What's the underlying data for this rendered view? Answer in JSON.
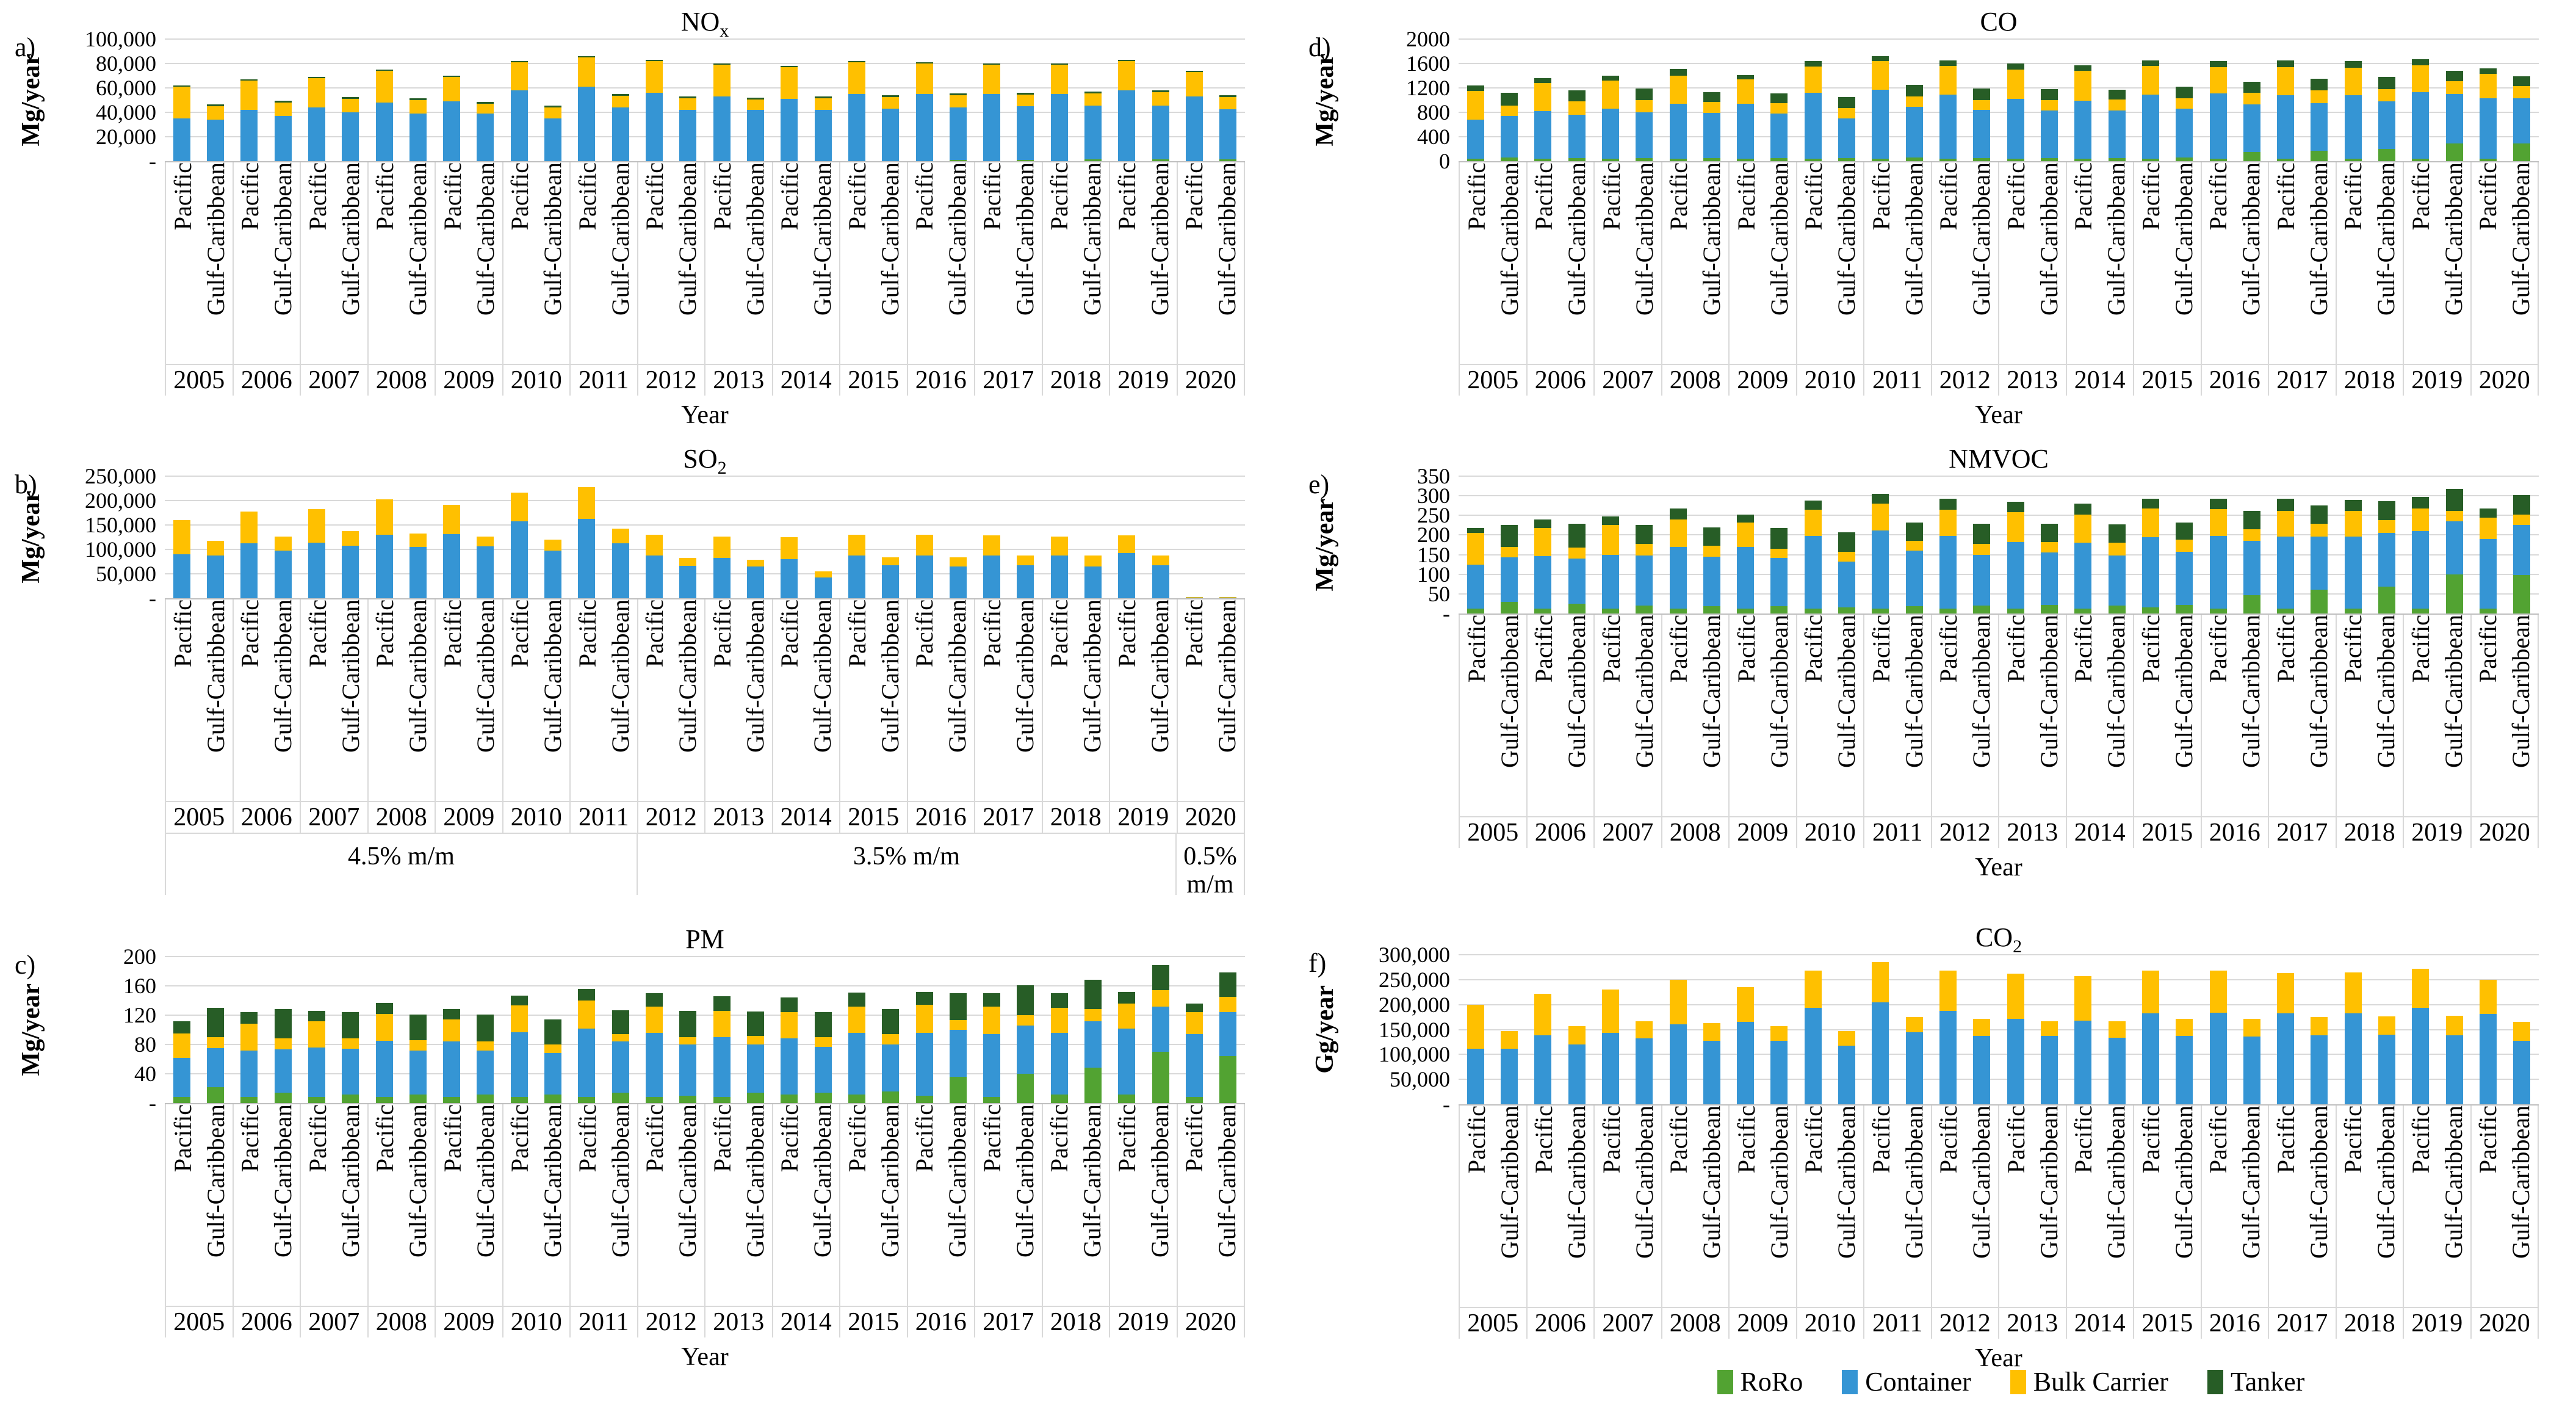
{
  "colors": {
    "RoRo": "#52A332",
    "Container": "#3595D4",
    "Bulk Carrier": "#FFC000",
    "Tanker": "#275D26",
    "gridline": "#D9D9D9",
    "axis_line": "#BFBFBF"
  },
  "regions": [
    "Pacific",
    "Gulf-Caribbean"
  ],
  "years": [
    "2005",
    "2006",
    "2007",
    "2008",
    "2009",
    "2010",
    "2011",
    "2012",
    "2013",
    "2014",
    "2015",
    "2016",
    "2017",
    "2018",
    "2019",
    "2020"
  ],
  "legend": {
    "items": [
      {
        "label": "RoRo",
        "color_key": "RoRo"
      },
      {
        "label": "Container",
        "color_key": "Container"
      },
      {
        "label": "Bulk Carrier",
        "color_key": "Bulk Carrier"
      },
      {
        "label": "Tanker",
        "color_key": "Tanker"
      }
    ]
  },
  "chart_data": [
    {
      "id": "a",
      "type": "bar",
      "stacked": true,
      "panel_letter": "a)",
      "title": "NO",
      "title_sub": "x",
      "ylabel": "Mg/year",
      "xlabel": "Year",
      "ylim": [
        0,
        100000
      ],
      "y_tick_labels": [
        "100,000",
        "80,000",
        "60,000",
        "40,000",
        "20,000",
        "-"
      ],
      "bar_order": "years x [Pacific, Gulf-Caribbean]",
      "series": [
        {
          "name": "RoRo",
          "values": [
            0,
            0,
            0,
            0,
            0,
            0,
            0,
            0,
            0,
            0,
            0,
            0,
            0,
            0,
            0,
            0,
            0,
            0,
            0,
            0,
            0,
            0,
            0,
            1000,
            0,
            1000,
            0,
            1500,
            0,
            1500,
            0,
            1500
          ]
        },
        {
          "name": "Container",
          "values": [
            35000,
            34000,
            42000,
            37000,
            44000,
            40000,
            48000,
            39000,
            49000,
            39000,
            58000,
            35000,
            61000,
            44000,
            56000,
            42000,
            53000,
            42000,
            51000,
            42000,
            55000,
            43000,
            55000,
            43000,
            55000,
            44000,
            55000,
            44000,
            58000,
            44000,
            53000,
            41000
          ]
        },
        {
          "name": "Bulk Carrier",
          "values": [
            26000,
            11000,
            24000,
            11000,
            24000,
            11000,
            26000,
            11000,
            20000,
            8000,
            23000,
            9000,
            24000,
            9500,
            26000,
            9500,
            26000,
            8500,
            26000,
            9500,
            26000,
            9500,
            25000,
            10000,
            24000,
            9500,
            24000,
            10000,
            24000,
            11000,
            20000,
            10000
          ]
        },
        {
          "name": "Tanker",
          "values": [
            1200,
            1500,
            1200,
            1500,
            1200,
            1500,
            1200,
            1500,
            1200,
            1500,
            1200,
            1500,
            1200,
            1500,
            1200,
            1500,
            1200,
            1500,
            1200,
            1500,
            1200,
            1500,
            1200,
            1500,
            1200,
            1500,
            1200,
            1500,
            1200,
            1500,
            1200,
            1500
          ]
        }
      ]
    },
    {
      "id": "b",
      "type": "bar",
      "stacked": true,
      "panel_letter": "b)",
      "title": "SO",
      "title_sub": "2",
      "ylabel": "Mg/year",
      "xlabel": "",
      "ylim": [
        0,
        250000
      ],
      "y_tick_labels": [
        "250,000",
        "200,000",
        "150,000",
        "100,000",
        "50,000",
        "-"
      ],
      "sub_axis": [
        {
          "label": "4.5% m/m",
          "span": 7
        },
        {
          "label": "3.5% m/m",
          "span": 8
        },
        {
          "label": "0.5% m/m",
          "span": 1
        }
      ],
      "series": [
        {
          "name": "RoRo",
          "values": [
            0,
            0,
            0,
            0,
            0,
            0,
            0,
            0,
            0,
            0,
            0,
            0,
            0,
            0,
            0,
            0,
            0,
            0,
            0,
            0,
            0,
            0,
            0,
            0,
            0,
            0,
            0,
            0,
            0,
            0,
            0,
            0
          ]
        },
        {
          "name": "Container",
          "values": [
            90000,
            88000,
            112000,
            97000,
            114000,
            108000,
            130000,
            105000,
            131000,
            106000,
            158000,
            98000,
            163000,
            113000,
            88000,
            66000,
            83000,
            65000,
            80000,
            42000,
            87000,
            68000,
            88000,
            65000,
            87000,
            67000,
            87000,
            65000,
            93000,
            68000,
            1500,
            1500
          ]
        },
        {
          "name": "Bulk Carrier",
          "values": [
            70000,
            30000,
            66000,
            29000,
            69000,
            30000,
            73000,
            28000,
            60000,
            20000,
            58000,
            22000,
            65000,
            30000,
            42000,
            16000,
            43000,
            14000,
            45000,
            13000,
            43000,
            16000,
            42000,
            19000,
            42000,
            20000,
            39000,
            22000,
            36000,
            20000,
            1500,
            1500
          ]
        },
        {
          "name": "Tanker",
          "values": [
            0,
            0,
            0,
            0,
            0,
            0,
            0,
            0,
            0,
            0,
            0,
            0,
            0,
            0,
            0,
            0,
            0,
            0,
            0,
            0,
            0,
            0,
            0,
            0,
            0,
            0,
            0,
            0,
            0,
            0,
            0,
            0
          ]
        }
      ]
    },
    {
      "id": "c",
      "type": "bar",
      "stacked": true,
      "panel_letter": "c)",
      "title": "PM",
      "title_sub": "",
      "ylabel": "Mg/year",
      "xlabel": "Year",
      "ylim": [
        0,
        200
      ],
      "y_tick_labels": [
        "200",
        "160",
        "120",
        "80",
        "40",
        "-"
      ],
      "series": [
        {
          "name": "RoRo",
          "values": [
            8,
            22,
            8,
            14,
            8,
            12,
            8,
            12,
            8,
            12,
            8,
            12,
            8,
            14,
            8,
            10,
            8,
            14,
            12,
            14,
            12,
            16,
            10,
            36,
            8,
            40,
            12,
            48,
            12,
            70,
            8,
            64
          ]
        },
        {
          "name": "Container",
          "values": [
            54,
            53,
            64,
            59,
            68,
            62,
            77,
            60,
            76,
            60,
            89,
            56,
            94,
            70,
            88,
            70,
            82,
            66,
            76,
            63,
            84,
            64,
            86,
            64,
            86,
            66,
            84,
            64,
            90,
            62,
            86,
            60
          ]
        },
        {
          "name": "Bulk Carrier",
          "values": [
            33,
            15,
            36,
            15,
            36,
            14,
            37,
            14,
            30,
            12,
            36,
            12,
            38,
            10,
            36,
            10,
            36,
            12,
            36,
            13,
            36,
            14,
            38,
            13,
            38,
            14,
            34,
            16,
            34,
            22,
            30,
            21
          ]
        },
        {
          "name": "Tanker",
          "values": [
            17,
            40,
            16,
            40,
            14,
            36,
            15,
            35,
            14,
            37,
            14,
            34,
            16,
            33,
            18,
            36,
            20,
            33,
            20,
            34,
            19,
            34,
            18,
            37,
            18,
            41,
            20,
            40,
            16,
            34,
            12,
            33
          ]
        }
      ]
    },
    {
      "id": "d",
      "type": "bar",
      "stacked": true,
      "panel_letter": "d)",
      "title": "CO",
      "title_sub": "",
      "ylabel": "Mg/year",
      "xlabel": "Year",
      "ylim": [
        0,
        2000
      ],
      "y_tick_labels": [
        "2000",
        "1600",
        "1200",
        "800",
        "400",
        "0"
      ],
      "series": [
        {
          "name": "RoRo",
          "values": [
            40,
            60,
            40,
            50,
            40,
            50,
            40,
            50,
            40,
            50,
            40,
            50,
            40,
            60,
            40,
            50,
            40,
            50,
            40,
            50,
            40,
            60,
            40,
            150,
            40,
            170,
            40,
            200,
            40,
            290,
            40,
            290
          ]
        },
        {
          "name": "Container",
          "values": [
            640,
            680,
            780,
            710,
            820,
            750,
            900,
            740,
            900,
            730,
            1080,
            650,
            1130,
            830,
            1050,
            790,
            980,
            780,
            950,
            780,
            1050,
            800,
            1070,
            780,
            1040,
            780,
            1040,
            780,
            1090,
            810,
            990,
            740
          ]
        },
        {
          "name": "Bulk Carrier",
          "values": [
            470,
            170,
            460,
            220,
            460,
            200,
            460,
            180,
            400,
            170,
            430,
            170,
            470,
            170,
            470,
            160,
            480,
            170,
            490,
            180,
            470,
            170,
            430,
            190,
            460,
            210,
            450,
            200,
            440,
            210,
            400,
            200
          ]
        },
        {
          "name": "Tanker",
          "values": [
            90,
            210,
            80,
            180,
            80,
            190,
            110,
            160,
            70,
            160,
            90,
            180,
            80,
            190,
            90,
            190,
            100,
            180,
            90,
            160,
            90,
            190,
            100,
            180,
            110,
            190,
            110,
            200,
            100,
            170,
            90,
            160
          ]
        }
      ]
    },
    {
      "id": "e",
      "type": "bar",
      "stacked": true,
      "panel_letter": "e)",
      "title": "NMVOC",
      "title_sub": "",
      "ylabel": "Mg/year",
      "xlabel": "Year",
      "ylim": [
        0,
        350
      ],
      "y_tick_labels": [
        "350",
        "300",
        "250",
        "200",
        "150",
        "100",
        "50",
        "-"
      ],
      "series": [
        {
          "name": "RoRo",
          "values": [
            12,
            30,
            12,
            25,
            12,
            20,
            12,
            18,
            12,
            18,
            12,
            15,
            12,
            18,
            12,
            20,
            12,
            22,
            12,
            20,
            15,
            22,
            12,
            47,
            12,
            60,
            12,
            68,
            12,
            100,
            12,
            98
          ]
        },
        {
          "name": "Container",
          "values": [
            113,
            113,
            135,
            115,
            138,
            128,
            158,
            127,
            158,
            124,
            186,
            117,
            200,
            142,
            186,
            130,
            170,
            133,
            168,
            128,
            180,
            135,
            185,
            138,
            184,
            136,
            184,
            137,
            198,
            135,
            178,
            127
          ]
        },
        {
          "name": "Bulk Carrier",
          "values": [
            80,
            27,
            71,
            28,
            75,
            30,
            70,
            27,
            62,
            23,
            67,
            26,
            68,
            25,
            67,
            28,
            76,
            27,
            72,
            32,
            72,
            31,
            69,
            30,
            66,
            32,
            66,
            33,
            58,
            27,
            55,
            27
          ]
        },
        {
          "name": "Tanker",
          "values": [
            13,
            55,
            22,
            60,
            22,
            47,
            27,
            48,
            20,
            53,
            23,
            49,
            25,
            47,
            28,
            50,
            27,
            46,
            28,
            47,
            26,
            44,
            27,
            47,
            30,
            48,
            28,
            49,
            29,
            56,
            22,
            50
          ]
        }
      ]
    },
    {
      "id": "f",
      "type": "bar",
      "stacked": true,
      "panel_letter": "f)",
      "title": "CO",
      "title_sub": "2",
      "ylabel": "Gg/year",
      "xlabel": "Year",
      "ylim": [
        0,
        300000
      ],
      "y_tick_labels": [
        "300,000",
        "250,000",
        "200,000",
        "150,000",
        "100,000",
        "50,000",
        "-"
      ],
      "series": [
        {
          "name": "RoRo",
          "values": [
            0,
            0,
            0,
            0,
            0,
            0,
            0,
            0,
            0,
            0,
            0,
            0,
            0,
            0,
            0,
            0,
            0,
            0,
            0,
            0,
            0,
            0,
            0,
            0,
            0,
            0,
            0,
            0,
            0,
            0,
            0,
            0
          ]
        },
        {
          "name": "Container",
          "values": [
            112000,
            112000,
            138000,
            120000,
            143000,
            132000,
            160000,
            128000,
            165000,
            128000,
            193000,
            118000,
            204000,
            145000,
            188000,
            137000,
            172000,
            137000,
            168000,
            134000,
            182000,
            137000,
            184000,
            136000,
            182000,
            139000,
            183000,
            140000,
            194000,
            138000,
            181000,
            128000
          ]
        },
        {
          "name": "Bulk Carrier",
          "values": [
            88000,
            35000,
            84000,
            37000,
            87000,
            35000,
            90000,
            35000,
            70000,
            29000,
            75000,
            29000,
            81000,
            30000,
            80000,
            34000,
            90000,
            30000,
            89000,
            33000,
            86000,
            35000,
            84000,
            36000,
            81000,
            36000,
            82000,
            37000,
            78000,
            39000,
            69000,
            38000
          ]
        },
        {
          "name": "Tanker",
          "values": [
            0,
            0,
            0,
            0,
            0,
            0,
            0,
            0,
            0,
            0,
            0,
            0,
            0,
            0,
            0,
            0,
            0,
            0,
            0,
            0,
            0,
            0,
            0,
            0,
            0,
            0,
            0,
            0,
            0,
            0,
            0,
            0
          ]
        }
      ]
    }
  ]
}
